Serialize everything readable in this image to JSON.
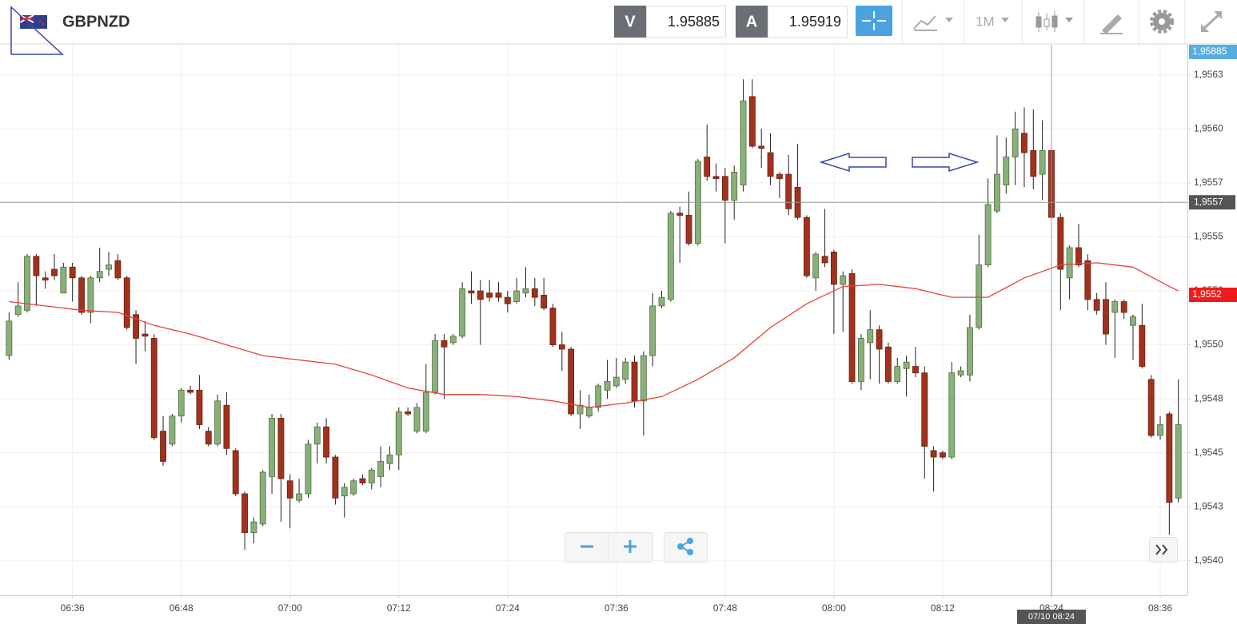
{
  "header": {
    "symbol": "GBPNZD",
    "bid_label": "V",
    "bid": "1.95885",
    "ask_label": "A",
    "ask": "1.95919",
    "timeframe": "1M"
  },
  "chart_data": {
    "type": "candlestick",
    "up_color": "#8ab07a",
    "down_color": "#a0321d",
    "grid": true,
    "x": [
      "06:29",
      "06:30",
      "06:31",
      "06:32",
      "06:33",
      "06:34",
      "06:35",
      "06:36",
      "06:37",
      "06:38",
      "06:39",
      "06:40",
      "06:41",
      "06:42",
      "06:43",
      "06:44",
      "06:45",
      "06:46",
      "06:47",
      "06:48",
      "06:49",
      "06:50",
      "06:51",
      "06:52",
      "06:53",
      "06:54",
      "06:55",
      "06:56",
      "06:57",
      "06:58",
      "06:59",
      "07:00",
      "07:01",
      "07:02",
      "07:03",
      "07:04",
      "07:05",
      "07:06",
      "07:07",
      "07:08",
      "07:09",
      "07:10",
      "07:11",
      "07:12",
      "07:13",
      "07:14",
      "07:15",
      "07:16",
      "07:17",
      "07:18",
      "07:19",
      "07:20",
      "07:21",
      "07:22",
      "07:23",
      "07:24",
      "07:25",
      "07:26",
      "07:27",
      "07:28",
      "07:29",
      "07:30",
      "07:31",
      "07:32",
      "07:33",
      "07:34",
      "07:35",
      "07:36",
      "07:37",
      "07:38",
      "07:39",
      "07:40",
      "07:41",
      "07:42",
      "07:43",
      "07:44",
      "07:45",
      "07:46",
      "07:47",
      "07:48",
      "07:49",
      "07:50",
      "07:51",
      "07:52",
      "07:53",
      "07:54",
      "07:55",
      "07:56",
      "07:57",
      "07:58",
      "07:59",
      "08:00",
      "08:01",
      "08:02",
      "08:03",
      "08:04",
      "08:05",
      "08:06",
      "08:07",
      "08:08",
      "08:09",
      "08:10",
      "08:11",
      "08:12",
      "08:13",
      "08:14",
      "08:15",
      "08:16",
      "08:17",
      "08:18",
      "08:19",
      "08:20",
      "08:21",
      "08:22",
      "08:23",
      "08:24",
      "08:25",
      "08:26",
      "08:27",
      "08:28",
      "08:29",
      "08:30",
      "08:31",
      "08:32",
      "08:33",
      "08:34",
      "08:35",
      "08:36",
      "08:37",
      "08:38"
    ],
    "open": [
      1.95495,
      1.95514,
      1.95516,
      1.95541,
      1.95531,
      1.95535,
      1.95524,
      1.95536,
      1.95531,
      1.95515,
      1.95531,
      1.95535,
      1.95539,
      1.95531,
      1.95514,
      1.95505,
      1.95503,
      1.9546,
      1.95454,
      1.95467,
      1.95479,
      1.95479,
      1.9546,
      1.95454,
      1.95472,
      1.95451,
      1.95431,
      1.95413,
      1.95417,
      1.95439,
      1.95466,
      1.95437,
      1.95428,
      1.95431,
      1.95454,
      1.95462,
      1.95448,
      1.9543,
      1.95431,
      1.95438,
      1.95436,
      1.95439,
      1.95445,
      1.95449,
      1.95469,
      1.9546,
      1.9546,
      1.95478,
      1.95502,
      1.95501,
      1.95504,
      1.95525,
      1.95525,
      1.95524,
      1.95524,
      1.95522,
      1.9552,
      1.95524,
      1.95526,
      1.95523,
      1.95517,
      1.955,
      1.95498,
      1.95468,
      1.95467,
      1.95471,
      1.95479,
      1.95481,
      1.95484,
      1.95492,
      1.95474,
      1.95495,
      1.95518,
      1.95521,
      1.95561,
      1.9556,
      1.95547,
      1.95587,
      1.95578,
      1.95578,
      1.95567,
      1.95574,
      1.95615,
      1.95592,
      1.95589,
      1.95579,
      1.95579,
      1.95573,
      1.95559,
      1.95531,
      1.95541,
      1.95543,
      1.95528,
      1.95533,
      1.95483,
      1.95501,
      1.95507,
      1.95499,
      1.95483,
      1.95489,
      1.9549,
      1.95487,
      1.95451,
      1.9545,
      1.95448,
      1.95486,
      1.95486,
      1.95508,
      1.95537,
      1.95562,
      1.95574,
      1.95587,
      1.95598,
      1.9559,
      1.95579,
      1.9559,
      1.95559,
      1.95531,
      1.95545,
      1.95539,
      1.95521,
      1.95521,
      1.95515,
      1.9552,
      1.95509,
      1.95509,
      1.95484,
      1.95458,
      1.95468,
      1.95429
    ],
    "high": [
      1.95515,
      1.95529,
      1.95542,
      1.95542,
      1.95534,
      1.95542,
      1.95538,
      1.95538,
      1.95532,
      1.95532,
      1.95545,
      1.95543,
      1.95542,
      1.95532,
      1.95516,
      1.95511,
      1.95505,
      1.95467,
      1.95468,
      1.9548,
      1.95481,
      1.95486,
      1.95462,
      1.95477,
      1.95478,
      1.95452,
      1.95432,
      1.9542,
      1.95442,
      1.95468,
      1.95468,
      1.9544,
      1.95438,
      1.95456,
      1.95464,
      1.95466,
      1.95449,
      1.95436,
      1.95438,
      1.9544,
      1.95443,
      1.95453,
      1.95453,
      1.95471,
      1.95471,
      1.95473,
      1.95491,
      1.95505,
      1.95505,
      1.95505,
      1.95529,
      1.95534,
      1.9553,
      1.9553,
      1.95529,
      1.95525,
      1.95531,
      1.95536,
      1.95531,
      1.95531,
      1.95519,
      1.95506,
      1.95499,
      1.95479,
      1.95477,
      1.95482,
      1.95493,
      1.95494,
      1.95494,
      1.95495,
      1.95497,
      1.95524,
      1.95525,
      1.95562,
      1.95564,
      1.95571,
      1.95586,
      1.95602,
      1.95584,
      1.95582,
      1.95583,
      1.95623,
      1.95623,
      1.956,
      1.95598,
      1.9558,
      1.95588,
      1.95593,
      1.9556,
      1.95543,
      1.95563,
      1.95544,
      1.95534,
      1.95535,
      1.95505,
      1.95516,
      1.95509,
      1.95501,
      1.95494,
      1.95495,
      1.95499,
      1.9549,
      1.95453,
      1.95451,
      1.95492,
      1.9549,
      1.95514,
      1.95551,
      1.95577,
      1.95597,
      1.95596,
      1.95608,
      1.9561,
      1.95609,
      1.95604,
      1.95591,
      1.95561,
      1.95546,
      1.95556,
      1.95542,
      1.95524,
      1.95529,
      1.95521,
      1.95521,
      1.95514,
      1.95519,
      1.95486,
      1.95467,
      1.95469,
      1.95484
    ],
    "low": [
      1.95493,
      1.95513,
      1.95515,
      1.95518,
      1.95526,
      1.9553,
      1.95524,
      1.9552,
      1.95514,
      1.9551,
      1.95529,
      1.95532,
      1.9553,
      1.95507,
      1.95491,
      1.95497,
      1.95456,
      1.95444,
      1.95453,
      1.95464,
      1.95477,
      1.95461,
      1.95453,
      1.95453,
      1.95449,
      1.9543,
      1.95405,
      1.95408,
      1.95416,
      1.95431,
      1.95418,
      1.95415,
      1.95427,
      1.95429,
      1.95445,
      1.95445,
      1.95426,
      1.9542,
      1.9543,
      1.95435,
      1.95433,
      1.95434,
      1.95442,
      1.95442,
      1.95467,
      1.95459,
      1.95459,
      1.95477,
      1.95475,
      1.955,
      1.95503,
      1.95519,
      1.955,
      1.9552,
      1.9552,
      1.95515,
      1.95519,
      1.95522,
      1.95518,
      1.95516,
      1.95499,
      1.95488,
      1.95467,
      1.95461,
      1.95466,
      1.95469,
      1.95475,
      1.9548,
      1.95482,
      1.95471,
      1.95458,
      1.9549,
      1.95517,
      1.9552,
      1.95538,
      1.95546,
      1.95546,
      1.95576,
      1.95571,
      1.95547,
      1.95558,
      1.95571,
      1.95591,
      1.95582,
      1.95574,
      1.95568,
      1.9556,
      1.95558,
      1.95531,
      1.95525,
      1.95536,
      1.95505,
      1.95506,
      1.95482,
      1.95479,
      1.95484,
      1.95482,
      1.95482,
      1.95482,
      1.95476,
      1.95485,
      1.95438,
      1.95432,
      1.95447,
      1.95447,
      1.95485,
      1.95483,
      1.95507,
      1.95536,
      1.95561,
      1.9557,
      1.95574,
      1.95573,
      1.95572,
      1.95567,
      1.95558,
      1.95516,
      1.95521,
      1.95536,
      1.95516,
      1.95514,
      1.955,
      1.95494,
      1.95512,
      1.95493,
      1.95489,
      1.95457,
      1.95456,
      1.95412,
      1.95427
    ],
    "close": [
      1.95511,
      1.95518,
      1.95541,
      1.95532,
      1.9553,
      1.95532,
      1.95536,
      1.95531,
      1.95515,
      1.95531,
      1.95534,
      1.95537,
      1.95531,
      1.95508,
      1.95503,
      1.95504,
      1.95457,
      1.95446,
      1.95467,
      1.95479,
      1.95478,
      1.95463,
      1.95454,
      1.95474,
      1.95452,
      1.95431,
      1.95413,
      1.95418,
      1.95441,
      1.95466,
      1.95438,
      1.95429,
      1.95431,
      1.95454,
      1.95462,
      1.95448,
      1.95429,
      1.95434,
      1.95437,
      1.95436,
      1.95442,
      1.95446,
      1.95449,
      1.95469,
      1.95468,
      1.95471,
      1.95478,
      1.95502,
      1.95499,
      1.95504,
      1.95526,
      1.95524,
      1.95521,
      1.95522,
      1.95522,
      1.95519,
      1.95525,
      1.95526,
      1.95522,
      1.95517,
      1.955,
      1.95498,
      1.95468,
      1.95472,
      1.95471,
      1.95481,
      1.95483,
      1.95485,
      1.95492,
      1.95474,
      1.95495,
      1.95518,
      1.95522,
      1.95561,
      1.9556,
      1.95547,
      1.95585,
      1.95578,
      1.95577,
      1.95567,
      1.9558,
      1.95613,
      1.95592,
      1.95591,
      1.95578,
      1.95577,
      1.95563,
      1.95559,
      1.95532,
      1.95542,
      1.95538,
      1.95528,
      1.95532,
      1.95483,
      1.95503,
      1.95507,
      1.95498,
      1.95483,
      1.9549,
      1.95492,
      1.95487,
      1.95453,
      1.95448,
      1.95448,
      1.95487,
      1.95488,
      1.95508,
      1.95537,
      1.95565,
      1.95579,
      1.95587,
      1.956,
      1.95589,
      1.95578,
      1.9559,
      1.95559,
      1.95535,
      1.95545,
      1.95537,
      1.95521,
      1.95516,
      1.95505,
      1.9552,
      1.95515,
      1.95513,
      1.9549,
      1.95458,
      1.95463,
      1.95427,
      1.95463
    ],
    "overlays": [
      {
        "type": "line",
        "color": "#e8403c",
        "x": [
          "06:29",
          "06:33",
          "06:37",
          "06:41",
          "06:45",
          "06:49",
          "06:53",
          "06:57",
          "07:01",
          "07:05",
          "07:09",
          "07:13",
          "07:17",
          "07:21",
          "07:25",
          "07:29",
          "07:33",
          "07:37",
          "07:41",
          "07:45",
          "07:49",
          "07:53",
          "07:57",
          "08:01",
          "08:05",
          "08:09",
          "08:13",
          "08:17",
          "08:21",
          "08:25",
          "08:29",
          "08:33",
          "08:37",
          "08:38"
        ],
        "values": [
          1.9552,
          1.95518,
          1.95516,
          1.95515,
          1.95509,
          1.95505,
          1.955,
          1.95495,
          1.95493,
          1.95491,
          1.95486,
          1.9548,
          1.95477,
          1.95477,
          1.95476,
          1.95474,
          1.95471,
          1.95473,
          1.95476,
          1.95484,
          1.95494,
          1.95508,
          1.95519,
          1.95527,
          1.95528,
          1.95526,
          1.95522,
          1.95522,
          1.95531,
          1.95537,
          1.95538,
          1.95536,
          1.95527,
          1.95525
        ]
      }
    ],
    "xlim": [
      "06:28",
      "08:39"
    ],
    "xticks": [
      "06:36",
      "06:48",
      "07:00",
      "07:12",
      "07:24",
      "07:36",
      "07:48",
      "08:00",
      "08:12",
      "08:24",
      "08:36"
    ],
    "ylim": [
      1.95384,
      1.95639
    ],
    "yticks": [
      {
        "value": 1.95625,
        "label": "1,9563"
      },
      {
        "value": 1.956,
        "label": "1,9560"
      },
      {
        "value": 1.95575,
        "label": "1,9557"
      },
      {
        "value": 1.9555,
        "label": "1,9555"
      },
      {
        "value": 1.95525,
        "label": "1,9552"
      },
      {
        "value": 1.955,
        "label": "1,9550"
      },
      {
        "value": 1.95475,
        "label": "1,9548"
      },
      {
        "value": 1.9545,
        "label": "1,9545"
      },
      {
        "value": 1.95425,
        "label": "1,9543"
      },
      {
        "value": 1.954,
        "label": "1,9540"
      }
    ],
    "crosshair": {
      "x": "08:24",
      "y": 1.95566,
      "x_label": "07/10 08:24",
      "y_label": "1,9557"
    },
    "price_labels": [
      {
        "label": "1,95885",
        "color": "#56aee0"
      },
      {
        "label": "1,9552",
        "color": "#ee1c1c"
      }
    ]
  }
}
